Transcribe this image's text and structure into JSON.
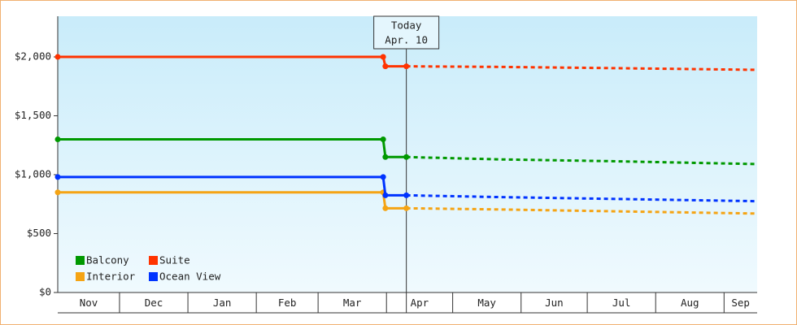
{
  "chart_data": {
    "type": "line",
    "x": [
      0,
      147.5,
      148.5,
      158,
      200,
      250,
      317
    ],
    "xlim": [
      0,
      317
    ],
    "xticks": [
      0,
      28,
      59,
      90,
      118,
      149,
      179,
      210,
      240,
      271,
      302,
      317
    ],
    "categories": [
      "Nov",
      "Dec",
      "Jan",
      "Feb",
      "Mar",
      "Apr",
      "May",
      "Jun",
      "Jul",
      "Aug",
      "Sep"
    ],
    "ylim": [
      0,
      2345
    ],
    "yticks": [
      {
        "value": 0,
        "label": "$0"
      },
      {
        "value": 500,
        "label": "$500"
      },
      {
        "value": 1000,
        "label": "$1,000"
      },
      {
        "value": 1500,
        "label": "$1,500"
      },
      {
        "value": 2000,
        "label": "$2,000"
      }
    ],
    "today_x": 158,
    "annotation": [
      "Today",
      "Apr. 10"
    ],
    "legend": "lower left",
    "series": [
      {
        "name": "Balcony",
        "color": "#009900",
        "values": [
          1300,
          1300,
          1150,
          1150,
          1130,
          1115,
          1090
        ]
      },
      {
        "name": "Suite",
        "color": "#ff3300",
        "values": [
          2000,
          2000,
          1920,
          1920,
          1915,
          1905,
          1890
        ]
      },
      {
        "name": "Interior",
        "color": "#f5a414",
        "values": [
          850,
          850,
          715,
          715,
          705,
          690,
          670
        ]
      },
      {
        "name": "Ocean View",
        "color": "#0033ff",
        "values": [
          980,
          980,
          825,
          825,
          810,
          795,
          775
        ]
      }
    ]
  }
}
